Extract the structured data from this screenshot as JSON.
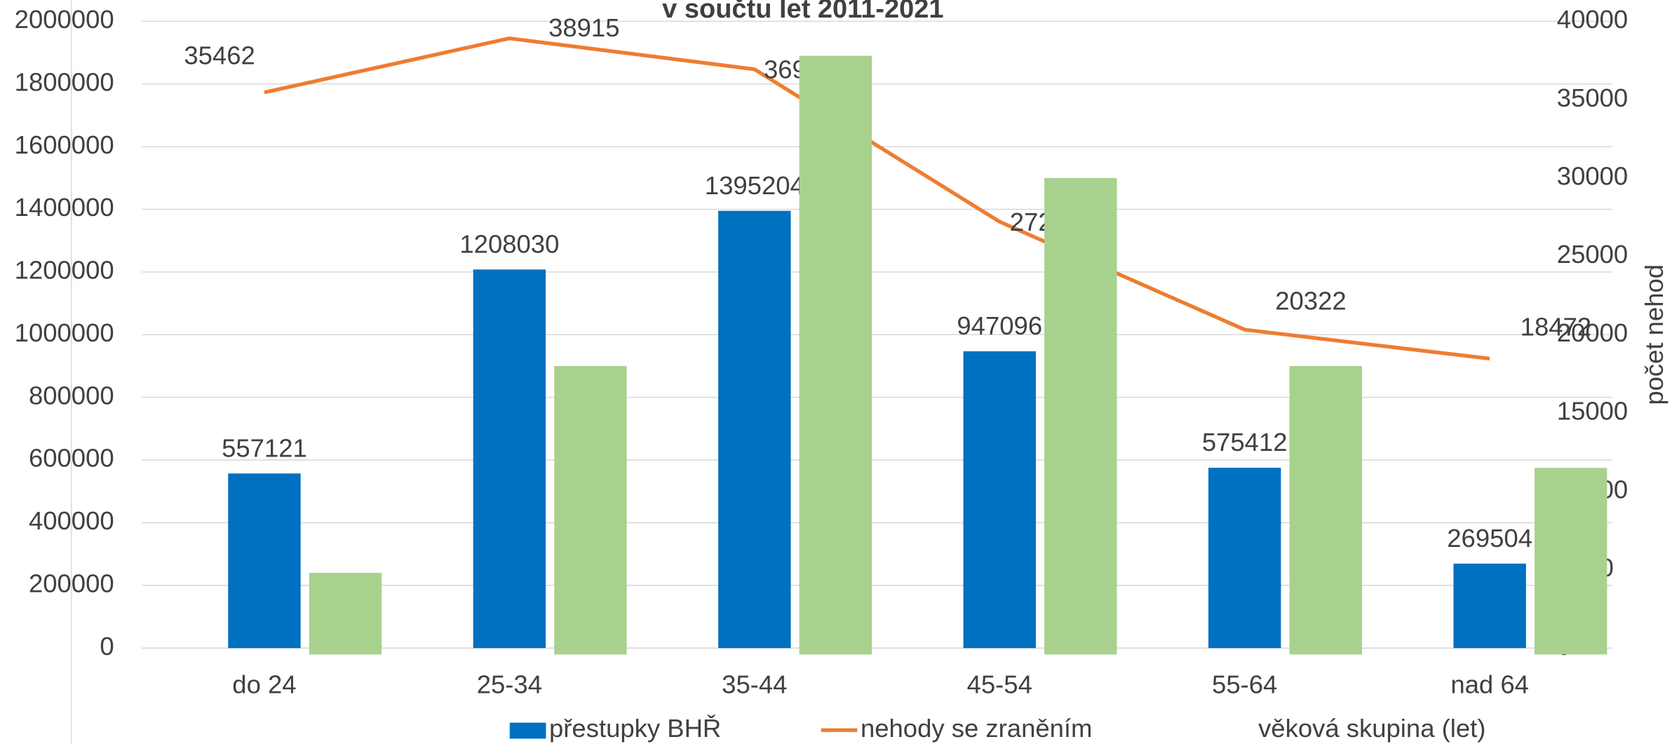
{
  "chart_data": {
    "type": "bar",
    "title": "v součtu let 2011-2021",
    "categories": [
      "do 24",
      "25-34",
      "35-44",
      "45-54",
      "55-64",
      "nad 64"
    ],
    "series": [
      {
        "name": "přestupky BHŘ",
        "type": "bar",
        "color": "#0070c0",
        "values": [
          557121,
          1208030,
          1395204,
          947096,
          575412,
          269504
        ]
      },
      {
        "name": "nehody se zraněním",
        "type": "line",
        "axis": "y2",
        "color": "#ed7d31",
        "values": [
          35462,
          38915,
          36939,
          27211,
          20322,
          18472
        ]
      },
      {
        "type": "bar",
        "axis": "y2",
        "color": "#a9d18e",
        "values": [
          4800,
          18000,
          37800,
          30000,
          18000,
          11500
        ]
      }
    ],
    "ylim": [
      0,
      2000000
    ],
    "yticks": [
      0,
      200000,
      400000,
      600000,
      800000,
      1000000,
      1200000,
      1400000,
      1600000,
      1800000,
      2000000
    ],
    "y2lim": [
      0,
      40000
    ],
    "y2ticks": [
      0,
      5000,
      10000,
      15000,
      20000,
      25000,
      30000,
      35000,
      40000
    ],
    "y2label": "počet nehod",
    "xlabel": "věková skupina (let)",
    "grid": true,
    "legend": "bottom"
  }
}
